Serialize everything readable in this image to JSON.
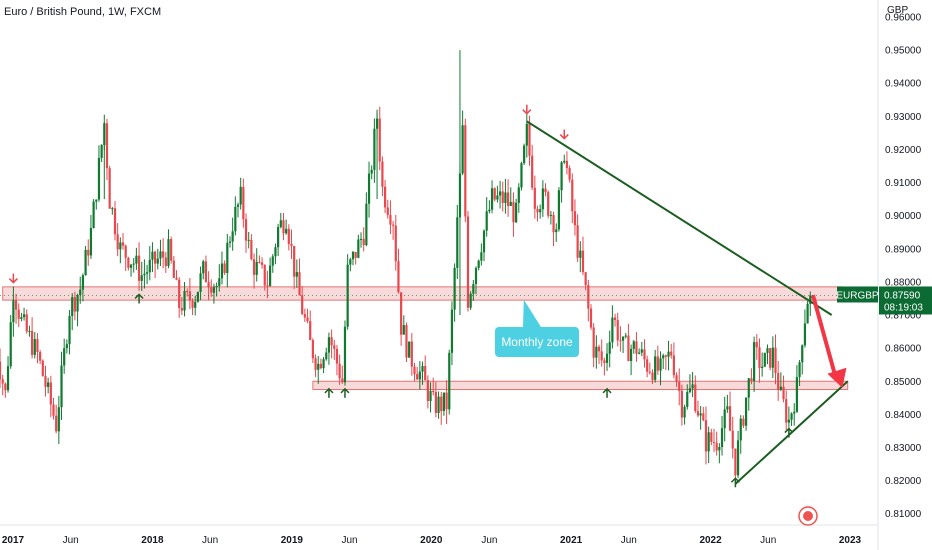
{
  "header": {
    "title": "Euro / British Pound, 1W, FXCM",
    "unit": "GBP"
  },
  "colors": {
    "up": "#26a69a",
    "down": "#ef5350",
    "upBody": "#0f7a30",
    "downBody": "#e8474d",
    "trend": "#1b5e20",
    "zone": "#f8d3d3",
    "zoneBorder": "#e57373",
    "callout": "#4dd0e1",
    "projection": "#f23645",
    "priceTag": "#0c6b33"
  },
  "chart_data": {
    "type": "candlestick",
    "symbol": "EURGBP",
    "timeframe": "1W",
    "ylim": [
      0.8075,
      0.9615
    ],
    "y_ticks": [
      "0.96000",
      "0.95000",
      "0.94000",
      "0.93000",
      "0.92000",
      "0.91000",
      "0.90000",
      "0.89000",
      "0.88000",
      "0.87000",
      "0.86000",
      "0.85000",
      "0.84000",
      "0.83000",
      "0.82000",
      "0.81000"
    ],
    "x_ticks": [
      {
        "label": "2017",
        "date": "2017-01-01",
        "year": true
      },
      {
        "label": "Jun",
        "date": "2017-06-01",
        "year": false
      },
      {
        "label": "2018",
        "date": "2018-01-01",
        "year": true
      },
      {
        "label": "Jun",
        "date": "2018-06-01",
        "year": false
      },
      {
        "label": "2019",
        "date": "2019-01-01",
        "year": true
      },
      {
        "label": "Jun",
        "date": "2019-06-01",
        "year": false
      },
      {
        "label": "2020",
        "date": "2020-01-01",
        "year": true
      },
      {
        "label": "Jun",
        "date": "2020-06-01",
        "year": false
      },
      {
        "label": "2021",
        "date": "2021-01-01",
        "year": true
      },
      {
        "label": "Jun",
        "date": "2021-06-01",
        "year": false
      },
      {
        "label": "2022",
        "date": "2022-01-01",
        "year": true
      },
      {
        "label": "Jun",
        "date": "2022-06-01",
        "year": false
      },
      {
        "label": "2023",
        "date": "2023-01-01",
        "year": true
      }
    ],
    "price_path": [
      [
        "2016-11-14",
        0.862
      ],
      [
        "2016-12-12",
        0.846
      ],
      [
        "2017-01-02",
        0.878
      ],
      [
        "2017-01-23",
        0.868
      ],
      [
        "2017-03-06",
        0.858
      ],
      [
        "2017-04-10",
        0.843
      ],
      [
        "2017-04-24",
        0.837
      ],
      [
        "2017-05-29",
        0.872
      ],
      [
        "2017-06-26",
        0.878
      ],
      [
        "2017-07-24",
        0.895
      ],
      [
        "2017-08-28",
        0.928
      ],
      [
        "2017-09-11",
        0.905
      ],
      [
        "2017-10-09",
        0.89
      ],
      [
        "2017-11-13",
        0.886
      ],
      [
        "2017-12-04",
        0.882
      ],
      [
        "2018-01-08",
        0.886
      ],
      [
        "2018-02-12",
        0.889
      ],
      [
        "2018-03-12",
        0.873
      ],
      [
        "2018-04-23",
        0.876
      ],
      [
        "2018-05-14",
        0.883
      ],
      [
        "2018-06-25",
        0.878
      ],
      [
        "2018-07-30",
        0.898
      ],
      [
        "2018-08-20",
        0.905
      ],
      [
        "2018-09-17",
        0.886
      ],
      [
        "2018-10-29",
        0.88
      ],
      [
        "2018-11-26",
        0.896
      ],
      [
        "2018-12-17",
        0.9
      ],
      [
        "2019-01-14",
        0.879
      ],
      [
        "2019-02-18",
        0.861
      ],
      [
        "2019-03-11",
        0.855
      ],
      [
        "2019-04-08",
        0.864
      ],
      [
        "2019-05-13",
        0.85
      ],
      [
        "2019-05-27",
        0.883
      ],
      [
        "2019-07-08",
        0.895
      ],
      [
        "2019-08-12",
        0.93
      ],
      [
        "2019-08-26",
        0.908
      ],
      [
        "2019-09-23",
        0.899
      ],
      [
        "2019-10-14",
        0.867
      ],
      [
        "2019-11-04",
        0.858
      ],
      [
        "2019-12-09",
        0.851
      ],
      [
        "2020-01-06",
        0.843
      ],
      [
        "2020-02-10",
        0.843
      ],
      [
        "2020-02-24",
        0.87
      ],
      [
        "2020-03-23",
        0.925
      ],
      [
        "2020-04-06",
        0.875
      ],
      [
        "2020-05-04",
        0.889
      ],
      [
        "2020-06-08",
        0.905
      ],
      [
        "2020-07-13",
        0.905
      ],
      [
        "2020-08-10",
        0.9
      ],
      [
        "2020-09-07",
        0.925
      ],
      [
        "2020-09-28",
        0.905
      ],
      [
        "2020-10-26",
        0.905
      ],
      [
        "2020-11-23",
        0.897
      ],
      [
        "2020-12-14",
        0.92
      ],
      [
        "2021-01-11",
        0.895
      ],
      [
        "2021-02-08",
        0.877
      ],
      [
        "2021-03-01",
        0.86
      ],
      [
        "2021-03-29",
        0.855
      ],
      [
        "2021-04-19",
        0.87
      ],
      [
        "2021-05-17",
        0.86
      ],
      [
        "2021-06-21",
        0.86
      ],
      [
        "2021-07-19",
        0.855
      ],
      [
        "2021-08-23",
        0.853
      ],
      [
        "2021-09-20",
        0.859
      ],
      [
        "2021-10-18",
        0.843
      ],
      [
        "2021-11-15",
        0.848
      ],
      [
        "2021-12-20",
        0.832
      ],
      [
        "2022-01-17",
        0.832
      ],
      [
        "2022-02-14",
        0.84
      ],
      [
        "2022-03-07",
        0.825
      ],
      [
        "2022-04-04",
        0.845
      ],
      [
        "2022-04-25",
        0.858
      ],
      [
        "2022-05-16",
        0.855
      ],
      [
        "2022-06-13",
        0.858
      ],
      [
        "2022-07-04",
        0.845
      ],
      [
        "2022-07-25",
        0.838
      ],
      [
        "2022-08-15",
        0.848
      ],
      [
        "2022-08-29",
        0.864
      ],
      [
        "2022-09-12",
        0.875
      ],
      [
        "2022-09-19",
        0.8759
      ]
    ],
    "zones": [
      {
        "label": "Monthly zone",
        "low": 0.8745,
        "high": 0.8785,
        "from": "2016-12-05",
        "to": "2022-12-12"
      },
      {
        "low": 0.8475,
        "high": 0.85,
        "from": "2019-02-25",
        "to": "2022-12-26"
      }
    ],
    "trendlines": [
      {
        "from": [
          "2020-09-07",
          0.9285
        ],
        "to": [
          "2022-11-14",
          0.87
        ]
      },
      {
        "from": [
          "2022-03-07",
          0.819
        ],
        "to": [
          "2022-12-26",
          0.85
        ]
      }
    ],
    "projection": {
      "from": [
        "2022-09-26",
        0.876
      ],
      "to": [
        "2022-12-12",
        0.848
      ]
    },
    "markers": [
      {
        "dir": "down",
        "date": "2017-01-02",
        "price": 0.881
      },
      {
        "dir": "down",
        "date": "2020-09-07",
        "price": 0.932
      },
      {
        "dir": "down",
        "date": "2020-12-14",
        "price": 0.9245
      },
      {
        "dir": "up",
        "date": "2017-11-27",
        "price": 0.875
      },
      {
        "dir": "up",
        "date": "2019-04-08",
        "price": 0.8465
      },
      {
        "dir": "up",
        "date": "2019-05-20",
        "price": 0.8465
      },
      {
        "dir": "up",
        "date": "2021-04-05",
        "price": 0.8465
      },
      {
        "dir": "up",
        "date": "2022-03-07",
        "price": 0.8195
      },
      {
        "dir": "up",
        "date": "2022-07-25",
        "price": 0.8345
      }
    ],
    "callout": {
      "text": "Monthly zone",
      "date": "2020-09-07",
      "price": 0.8755
    },
    "price_tag": {
      "symbol": "EURGBP",
      "price": "0.87590",
      "countdown": "08:19:03",
      "price_value": 0.8759
    }
  }
}
